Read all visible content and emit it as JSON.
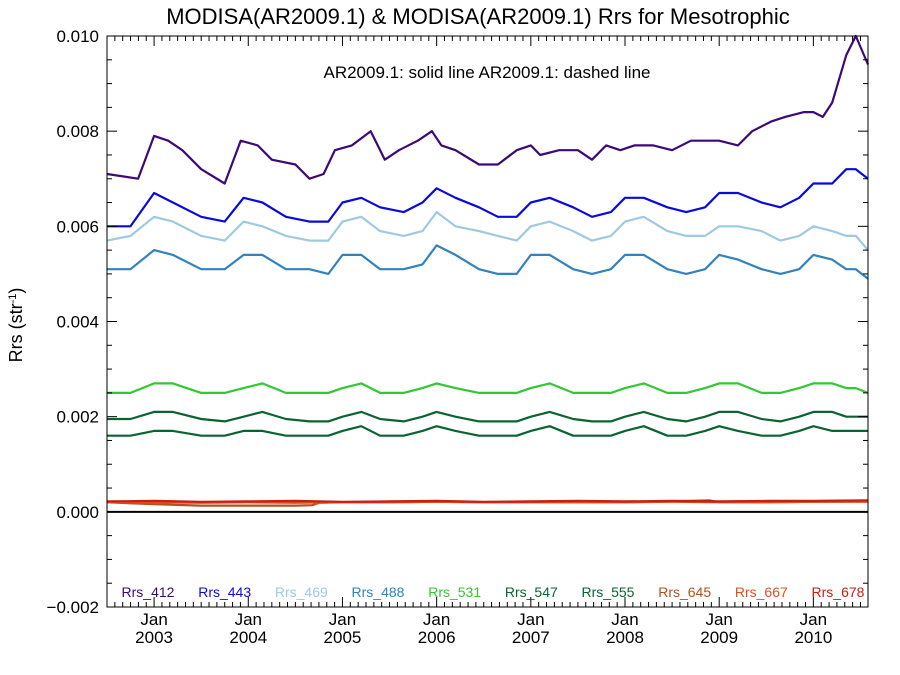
{
  "chart_data": {
    "type": "line",
    "title": "MODISA(AR2009.1) & MODISA(AR2009.1)  Rrs for Mesotrophic",
    "subtitle": "AR2009.1: solid line   AR2009.1: dashed line",
    "ylabel": "Rrs (str",
    "ylabel_sup": "-1",
    "ylim": [
      -0.002,
      0.01
    ],
    "xlim": [
      2002.5,
      2010.58
    ],
    "y_ticks": [
      -0.002,
      0.0,
      0.002,
      0.004,
      0.006,
      0.008,
      0.01
    ],
    "y_tick_labels": [
      "−0.002",
      "0.000",
      "0.002",
      "0.004",
      "0.006",
      "0.008",
      "0.010"
    ],
    "x_ticks": [
      2003,
      2004,
      2005,
      2006,
      2007,
      2008,
      2009,
      2010
    ],
    "x_tick_month": "Jan",
    "x_tick_years": [
      "2003",
      "2004",
      "2005",
      "2006",
      "2007",
      "2008",
      "2009",
      "2010"
    ],
    "zero_line": 0.0,
    "legend_position": "bottom, inside plot",
    "series": [
      {
        "name": "Rrs_412",
        "color": "#3c0a78",
        "x": [
          2002.5,
          2002.83,
          2003.0,
          2003.15,
          2003.3,
          2003.5,
          2003.75,
          2003.92,
          2004.1,
          2004.25,
          2004.5,
          2004.65,
          2004.8,
          2004.92,
          2005.1,
          2005.3,
          2005.45,
          2005.6,
          2005.8,
          2005.95,
          2006.05,
          2006.2,
          2006.45,
          2006.65,
          2006.85,
          2007.0,
          2007.1,
          2007.3,
          2007.5,
          2007.65,
          2007.8,
          2007.95,
          2008.1,
          2008.3,
          2008.5,
          2008.7,
          2008.85,
          2009.0,
          2009.2,
          2009.35,
          2009.55,
          2009.7,
          2009.9,
          2010.0,
          2010.1,
          2010.2,
          2010.35,
          2010.45,
          2010.58
        ],
        "y": [
          0.0071,
          0.007,
          0.0079,
          0.0078,
          0.0076,
          0.0072,
          0.0069,
          0.0078,
          0.0077,
          0.0074,
          0.0073,
          0.007,
          0.0071,
          0.0076,
          0.0077,
          0.008,
          0.0074,
          0.0076,
          0.0078,
          0.008,
          0.0077,
          0.0076,
          0.0073,
          0.0073,
          0.0076,
          0.0077,
          0.0075,
          0.0076,
          0.0076,
          0.0074,
          0.0077,
          0.0076,
          0.0077,
          0.0077,
          0.0076,
          0.0078,
          0.0078,
          0.0078,
          0.0077,
          0.008,
          0.0082,
          0.0083,
          0.0084,
          0.0084,
          0.0083,
          0.0086,
          0.0096,
          0.01,
          0.0094
        ]
      },
      {
        "name": "Rrs_443",
        "color": "#0a0adc",
        "x": [
          2002.5,
          2002.75,
          2003.0,
          2003.2,
          2003.5,
          2003.75,
          2003.95,
          2004.15,
          2004.4,
          2004.65,
          2004.85,
          2005.0,
          2005.2,
          2005.4,
          2005.65,
          2005.85,
          2006.0,
          2006.2,
          2006.45,
          2006.65,
          2006.85,
          2007.0,
          2007.2,
          2007.45,
          2007.65,
          2007.85,
          2008.0,
          2008.2,
          2008.45,
          2008.65,
          2008.85,
          2009.0,
          2009.2,
          2009.45,
          2009.65,
          2009.85,
          2010.0,
          2010.2,
          2010.35,
          2010.45,
          2010.58
        ],
        "y": [
          0.006,
          0.006,
          0.0067,
          0.0065,
          0.0062,
          0.0061,
          0.0066,
          0.0065,
          0.0062,
          0.0061,
          0.0061,
          0.0065,
          0.0066,
          0.0064,
          0.0063,
          0.0065,
          0.0068,
          0.0066,
          0.0064,
          0.0062,
          0.0062,
          0.0065,
          0.0066,
          0.0064,
          0.0062,
          0.0063,
          0.0066,
          0.0066,
          0.0064,
          0.0063,
          0.0064,
          0.0067,
          0.0067,
          0.0065,
          0.0064,
          0.0066,
          0.0069,
          0.0069,
          0.0072,
          0.0072,
          0.007
        ]
      },
      {
        "name": "Rrs_469",
        "color": "#9ecae1",
        "x": [
          2002.5,
          2002.75,
          2003.0,
          2003.2,
          2003.5,
          2003.75,
          2003.95,
          2004.15,
          2004.4,
          2004.65,
          2004.85,
          2005.0,
          2005.2,
          2005.4,
          2005.65,
          2005.85,
          2006.0,
          2006.2,
          2006.45,
          2006.65,
          2006.85,
          2007.0,
          2007.2,
          2007.45,
          2007.65,
          2007.85,
          2008.0,
          2008.2,
          2008.45,
          2008.65,
          2008.85,
          2009.0,
          2009.2,
          2009.45,
          2009.65,
          2009.85,
          2010.0,
          2010.2,
          2010.35,
          2010.45,
          2010.58
        ],
        "y": [
          0.0057,
          0.0058,
          0.0062,
          0.0061,
          0.0058,
          0.0057,
          0.0061,
          0.006,
          0.0058,
          0.0057,
          0.0057,
          0.0061,
          0.0062,
          0.0059,
          0.0058,
          0.0059,
          0.0063,
          0.006,
          0.0059,
          0.0058,
          0.0057,
          0.006,
          0.0061,
          0.0059,
          0.0057,
          0.0058,
          0.0061,
          0.0062,
          0.0059,
          0.0058,
          0.0058,
          0.006,
          0.006,
          0.0059,
          0.0057,
          0.0058,
          0.006,
          0.0059,
          0.0058,
          0.0058,
          0.0055
        ]
      },
      {
        "name": "Rrs_488",
        "color": "#3182bd",
        "x": [
          2002.5,
          2002.75,
          2003.0,
          2003.2,
          2003.5,
          2003.75,
          2003.95,
          2004.15,
          2004.4,
          2004.65,
          2004.85,
          2005.0,
          2005.2,
          2005.4,
          2005.65,
          2005.85,
          2006.0,
          2006.2,
          2006.45,
          2006.65,
          2006.85,
          2007.0,
          2007.2,
          2007.45,
          2007.65,
          2007.85,
          2008.0,
          2008.2,
          2008.45,
          2008.65,
          2008.85,
          2009.0,
          2009.2,
          2009.45,
          2009.65,
          2009.85,
          2010.0,
          2010.2,
          2010.35,
          2010.45,
          2010.58
        ],
        "y": [
          0.0051,
          0.0051,
          0.0055,
          0.0054,
          0.0051,
          0.0051,
          0.0054,
          0.0054,
          0.0051,
          0.0051,
          0.005,
          0.0054,
          0.0054,
          0.0051,
          0.0051,
          0.0052,
          0.0056,
          0.0054,
          0.0051,
          0.005,
          0.005,
          0.0054,
          0.0054,
          0.0051,
          0.005,
          0.0051,
          0.0054,
          0.0054,
          0.0051,
          0.005,
          0.0051,
          0.0054,
          0.0053,
          0.0051,
          0.005,
          0.0051,
          0.0054,
          0.0053,
          0.0051,
          0.0051,
          0.0049
        ]
      },
      {
        "name": "Rrs_531",
        "color": "#32c832",
        "x": [
          2002.5,
          2002.75,
          2003.0,
          2003.2,
          2003.5,
          2003.75,
          2003.95,
          2004.15,
          2004.4,
          2004.65,
          2004.85,
          2005.0,
          2005.2,
          2005.4,
          2005.65,
          2005.85,
          2006.0,
          2006.2,
          2006.45,
          2006.65,
          2006.85,
          2007.0,
          2007.2,
          2007.45,
          2007.65,
          2007.85,
          2008.0,
          2008.2,
          2008.45,
          2008.65,
          2008.85,
          2009.0,
          2009.2,
          2009.45,
          2009.65,
          2009.85,
          2010.0,
          2010.2,
          2010.35,
          2010.45,
          2010.58
        ],
        "y": [
          0.0025,
          0.0025,
          0.0027,
          0.0027,
          0.0025,
          0.0025,
          0.0026,
          0.0027,
          0.0025,
          0.0025,
          0.0025,
          0.0026,
          0.0027,
          0.0025,
          0.0025,
          0.0026,
          0.0027,
          0.0026,
          0.0025,
          0.0025,
          0.0025,
          0.0026,
          0.0027,
          0.0025,
          0.0025,
          0.0025,
          0.0026,
          0.0027,
          0.0025,
          0.0025,
          0.0026,
          0.0027,
          0.0027,
          0.0025,
          0.0025,
          0.0026,
          0.0027,
          0.0027,
          0.0026,
          0.0026,
          0.0025
        ]
      },
      {
        "name": "Rrs_547",
        "color": "#0a6432",
        "x": [
          2002.5,
          2002.75,
          2003.0,
          2003.2,
          2003.5,
          2003.75,
          2003.95,
          2004.15,
          2004.4,
          2004.65,
          2004.85,
          2005.0,
          2005.2,
          2005.4,
          2005.65,
          2005.85,
          2006.0,
          2006.2,
          2006.45,
          2006.65,
          2006.85,
          2007.0,
          2007.2,
          2007.45,
          2007.65,
          2007.85,
          2008.0,
          2008.2,
          2008.45,
          2008.65,
          2008.85,
          2009.0,
          2009.2,
          2009.45,
          2009.65,
          2009.85,
          2010.0,
          2010.2,
          2010.35,
          2010.45,
          2010.58
        ],
        "y": [
          0.00195,
          0.00195,
          0.0021,
          0.0021,
          0.00195,
          0.0019,
          0.002,
          0.0021,
          0.00195,
          0.0019,
          0.0019,
          0.002,
          0.0021,
          0.00195,
          0.0019,
          0.002,
          0.0021,
          0.002,
          0.0019,
          0.0019,
          0.0019,
          0.002,
          0.0021,
          0.00195,
          0.0019,
          0.0019,
          0.002,
          0.0021,
          0.00195,
          0.0019,
          0.002,
          0.0021,
          0.0021,
          0.00195,
          0.0019,
          0.002,
          0.0021,
          0.0021,
          0.002,
          0.002,
          0.002
        ]
      },
      {
        "name": "Rrs_555",
        "color": "#0a6432",
        "x": [
          2002.5,
          2002.75,
          2003.0,
          2003.2,
          2003.5,
          2003.75,
          2003.95,
          2004.15,
          2004.4,
          2004.65,
          2004.85,
          2005.0,
          2005.2,
          2005.4,
          2005.65,
          2005.85,
          2006.0,
          2006.2,
          2006.45,
          2006.65,
          2006.85,
          2007.0,
          2007.2,
          2007.45,
          2007.65,
          2007.85,
          2008.0,
          2008.2,
          2008.45,
          2008.65,
          2008.85,
          2009.0,
          2009.2,
          2009.45,
          2009.65,
          2009.85,
          2010.0,
          2010.2,
          2010.35,
          2010.45,
          2010.58
        ],
        "y": [
          0.0016,
          0.0016,
          0.0017,
          0.0017,
          0.0016,
          0.0016,
          0.0017,
          0.0017,
          0.0016,
          0.0016,
          0.0016,
          0.0017,
          0.0018,
          0.0016,
          0.0016,
          0.0017,
          0.0018,
          0.0017,
          0.0016,
          0.0016,
          0.0016,
          0.0017,
          0.0018,
          0.0016,
          0.0016,
          0.0016,
          0.0017,
          0.0018,
          0.0016,
          0.0016,
          0.0017,
          0.0018,
          0.0017,
          0.0016,
          0.0016,
          0.0017,
          0.0018,
          0.0017,
          0.0017,
          0.0017,
          0.0017
        ]
      },
      {
        "name": "Rrs_645",
        "color": "#b4501e",
        "x": [
          2002.5,
          2002.75,
          2003.0,
          2003.5,
          2004.0,
          2004.5,
          2004.68,
          2004.75,
          2005.0,
          2005.5,
          2006.0,
          2006.5,
          2007.0,
          2007.5,
          2008.0,
          2008.5,
          2008.9,
          2009.0,
          2009.5,
          2010.0,
          2010.58
        ],
        "y": [
          0.0002,
          0.00018,
          0.00016,
          0.00013,
          0.00013,
          0.00013,
          0.00014,
          0.00019,
          0.0002,
          0.0002,
          0.00021,
          0.0002,
          0.0002,
          0.0002,
          0.0002,
          0.00022,
          0.00024,
          0.0002,
          0.0002,
          0.00021,
          0.00022
        ]
      },
      {
        "name": "Rrs_667",
        "color": "#dc501e",
        "x": [
          2002.5,
          2003.0,
          2003.5,
          2004.0,
          2004.5,
          2005.0,
          2005.5,
          2006.0,
          2006.5,
          2007.0,
          2007.5,
          2008.0,
          2008.5,
          2009.0,
          2009.5,
          2010.0,
          2010.58
        ],
        "y": [
          0.0002,
          0.0002,
          0.00019,
          0.0002,
          0.00019,
          0.0002,
          0.0002,
          0.00021,
          0.0002,
          0.0002,
          0.0002,
          0.0002,
          0.00021,
          0.0002,
          0.0002,
          0.00021,
          0.00021
        ]
      },
      {
        "name": "Rrs_678",
        "color": "#c81e14",
        "x": [
          2002.5,
          2003.0,
          2003.5,
          2004.0,
          2004.5,
          2005.0,
          2005.5,
          2006.0,
          2006.5,
          2007.0,
          2007.5,
          2008.0,
          2008.5,
          2009.0,
          2009.5,
          2010.0,
          2010.58
        ],
        "y": [
          0.00022,
          0.00023,
          0.00021,
          0.00022,
          0.00023,
          0.00021,
          0.00022,
          0.00023,
          0.00021,
          0.00022,
          0.00023,
          0.00022,
          0.00023,
          0.00022,
          0.00023,
          0.00023,
          0.00024
        ]
      }
    ]
  }
}
